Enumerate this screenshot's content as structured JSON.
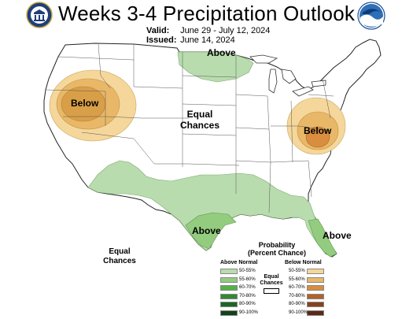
{
  "header": {
    "title": "Weeks 3-4 Precipitation Outlook",
    "valid_label": "Valid:",
    "valid_value": "June 29 - July 12, 2024",
    "issued_label": "Issued:",
    "issued_value": "June 14, 2024"
  },
  "map_labels": {
    "above_north": "Above",
    "below_west": "Below",
    "equal_center_1": "Equal",
    "equal_center_2": "Chances",
    "below_east": "Below",
    "above_texas": "Above",
    "above_florida": "Above",
    "equal_sw_1": "Equal",
    "equal_sw_2": "Chances"
  },
  "legend": {
    "title_1": "Probability",
    "title_2": "(Percent Chance)",
    "above_head": "Above Normal",
    "below_head": "Below Normal",
    "equal_1": "Equal",
    "equal_2": "Chances",
    "above_rows": [
      {
        "label": "50-55%",
        "color": "#b9dcae"
      },
      {
        "label": "55-60%",
        "color": "#93cc7f"
      },
      {
        "label": "60-70%",
        "color": "#52b447"
      },
      {
        "label": "70-80%",
        "color": "#2f8a33"
      },
      {
        "label": "80-90%",
        "color": "#1b6626"
      },
      {
        "label": "90-100%",
        "color": "#0f4418"
      }
    ],
    "below_rows": [
      {
        "label": "50-55%",
        "color": "#f5d79b"
      },
      {
        "label": "55-60%",
        "color": "#e8b868"
      },
      {
        "label": "60-70%",
        "color": "#d98d3e"
      },
      {
        "label": "70-80%",
        "color": "#b2622a"
      },
      {
        "label": "80-90%",
        "color": "#86421f"
      },
      {
        "label": "90-100%",
        "color": "#5c2a14"
      }
    ]
  },
  "colors": {
    "above_50_55": "#b9dcae",
    "above_55_60": "#93cc7f",
    "below_50_55": "#f5d79b",
    "below_55_60": "#e8b868",
    "below_60_70": "#d98d3e"
  }
}
